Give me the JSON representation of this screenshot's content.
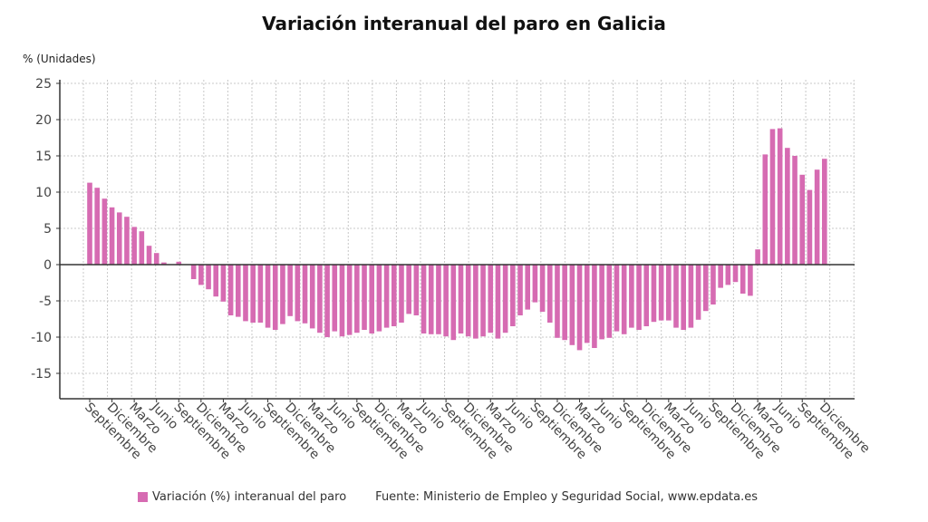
{
  "chart_data": {
    "type": "bar",
    "title": "Variación interanual del paro en Galicia",
    "ylabel": "% (Unidades)",
    "xlabel": "",
    "ylim": [
      -18.5,
      25.5
    ],
    "y_ticks": [
      -15,
      -10,
      -5,
      0,
      5,
      10,
      15,
      20,
      25
    ],
    "grid": true,
    "legend_position": "bottom",
    "x_tick_labels": [
      "Septiembre",
      "Diciembre",
      "Marzo",
      "Junio",
      "Septiembre",
      "Diciembre",
      "Marzo",
      "Junio",
      "Septiembre",
      "Diciembre",
      "Marzo",
      "Junio",
      "Septiembre",
      "Diciembre",
      "Marzo",
      "Junio",
      "Septiembre",
      "Diciembre",
      "Marzo",
      "Junio",
      "Septiembre",
      "Diciembre",
      "Marzo",
      "Junio",
      "Septiembre",
      "Diciembre",
      "Marzo",
      "Junio",
      "Septiembre",
      "Diciembre",
      "Marzo",
      "Junio",
      "Septiembre",
      "Diciembre"
    ],
    "series": [
      {
        "name": "Variación (%) interanual del paro",
        "color": "#d66bb2",
        "values": [
          11.3,
          10.6,
          9.1,
          7.9,
          7.2,
          6.6,
          5.2,
          4.6,
          2.6,
          1.6,
          0.3,
          0,
          0.4,
          0,
          -2.0,
          -2.8,
          -3.4,
          -4.4,
          -5.1,
          -7.0,
          -7.2,
          -7.8,
          -8.0,
          -8.0,
          -8.7,
          -9.0,
          -8.2,
          -7.1,
          -7.8,
          -8.1,
          -8.8,
          -9.4,
          -10.0,
          -9.2,
          -9.9,
          -9.7,
          -9.4,
          -9.0,
          -9.5,
          -9.2,
          -8.7,
          -8.5,
          -8.0,
          -6.8,
          -7.0,
          -9.5,
          -9.6,
          -9.6,
          -9.9,
          -10.4,
          -9.5,
          -9.9,
          -10.2,
          -9.9,
          -9.4,
          -10.2,
          -9.4,
          -8.5,
          -7.0,
          -6.2,
          -5.2,
          -6.5,
          -8.0,
          -10.1,
          -10.4,
          -11.1,
          -11.8,
          -10.8,
          -11.5,
          -10.3,
          -10.1,
          -9.2,
          -9.6,
          -8.7,
          -9.0,
          -8.5,
          -7.9,
          -7.7,
          -7.7,
          -8.7,
          -9.0,
          -8.7,
          -7.6,
          -6.4,
          -5.5,
          -3.2,
          -2.8,
          -2.4,
          -4.0,
          -4.3,
          2.1,
          15.2,
          18.7,
          18.8,
          16.1,
          15.0,
          12.4,
          10.3,
          13.1,
          14.6
        ]
      }
    ],
    "source": "Fuente: Ministerio de Empleo y Seguridad Social, www.epdata.es"
  }
}
